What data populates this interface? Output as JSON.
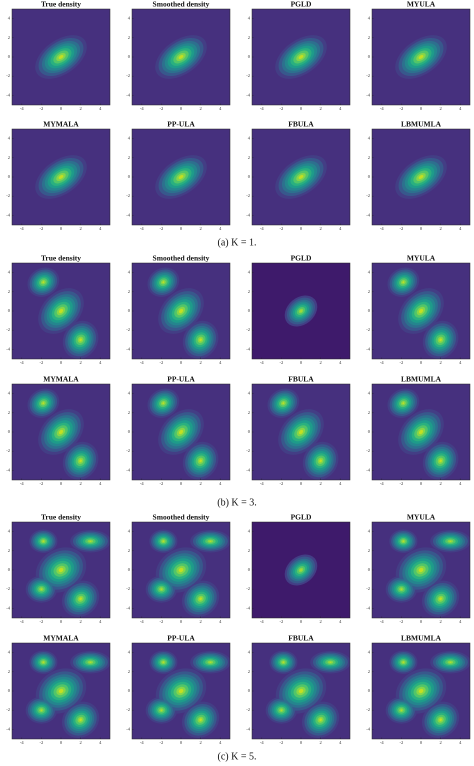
{
  "figures": [
    {
      "caption": "(a) K = 1.",
      "panels": [
        "True density",
        "Smoothed density",
        "PGLD",
        "MYULA",
        "MYMALA",
        "PP-ULA",
        "FBULA",
        "LBMUMLA"
      ]
    },
    {
      "caption": "(b) K = 3.",
      "panels": [
        "True density",
        "Smoothed density",
        "PGLD",
        "MYULA",
        "MYMALA",
        "PP-ULA",
        "FBULA",
        "LBMUMLA"
      ]
    },
    {
      "caption": "(c) K = 5.",
      "panels": [
        "True density",
        "Smoothed density",
        "PGLD",
        "MYULA",
        "MYMALA",
        "PP-ULA",
        "FBULA",
        "LBMUMLA"
      ]
    }
  ],
  "xlim": [
    -5,
    5
  ],
  "ylim": [
    -5,
    5
  ],
  "xticks": [
    -4,
    -2,
    0,
    2,
    4
  ],
  "yticks": [
    4,
    2,
    0,
    -2,
    -4
  ]
}
